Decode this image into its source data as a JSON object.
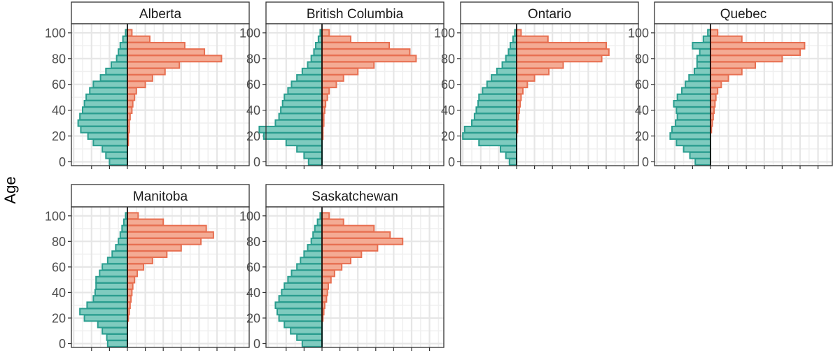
{
  "chart_data": {
    "type": "bar",
    "orientation": "horizontal",
    "facet_layout": "4 columns x 2 rows",
    "ylabel": "Age",
    "xlabel": "",
    "ylim": [
      -3,
      107
    ],
    "y_ticks": [
      0,
      20,
      40,
      60,
      80,
      100
    ],
    "x_ticks_shown": false,
    "grid": true,
    "legend": "none",
    "colors": {
      "left_series": "#2a9d8f",
      "right_series": "#e76f51",
      "left_fill": "#7fcbbf",
      "right_fill": "#f4ab94"
    },
    "age_bins": [
      0,
      5,
      10,
      15,
      20,
      25,
      30,
      35,
      40,
      45,
      50,
      55,
      60,
      65,
      70,
      75,
      80,
      85,
      90,
      95,
      100
    ],
    "panels": [
      {
        "title": "Alberta",
        "left": [
          20,
          24,
          28,
          38,
          44,
          52,
          55,
          53,
          50,
          48,
          46,
          42,
          38,
          30,
          24,
          18,
          12,
          10,
          8,
          5,
          2
        ],
        "right": [
          0,
          0,
          0,
          1,
          1,
          2,
          2,
          3,
          5,
          6,
          8,
          10,
          20,
          28,
          42,
          58,
          105,
          86,
          64,
          25,
          5
        ]
      },
      {
        "title": "British Columbia",
        "left": [
          15,
          20,
          28,
          40,
          65,
          70,
          52,
          48,
          46,
          44,
          42,
          38,
          34,
          28,
          22,
          16,
          12,
          9,
          7,
          4,
          2
        ],
        "right": [
          0,
          0,
          0,
          0,
          1,
          1,
          2,
          2,
          3,
          4,
          6,
          8,
          16,
          24,
          40,
          58,
          105,
          98,
          75,
          32,
          8
        ]
      },
      {
        "title": "Ontario",
        "left": [
          8,
          12,
          18,
          42,
          60,
          58,
          50,
          47,
          45,
          43,
          42,
          38,
          33,
          28,
          22,
          16,
          12,
          9,
          7,
          4,
          2
        ],
        "right": [
          0,
          0,
          0,
          0,
          0,
          1,
          1,
          2,
          3,
          4,
          5,
          7,
          12,
          20,
          36,
          52,
          95,
          103,
          100,
          35,
          5
        ]
      },
      {
        "title": "Quebec",
        "left": [
          17,
          23,
          30,
          38,
          45,
          43,
          39,
          37,
          38,
          41,
          37,
          32,
          28,
          24,
          18,
          15,
          15,
          12,
          20,
          8,
          3
        ],
        "right": [
          0,
          0,
          0,
          0,
          0,
          1,
          2,
          3,
          4,
          5,
          6,
          8,
          12,
          20,
          35,
          50,
          80,
          100,
          105,
          35,
          8
        ]
      },
      {
        "title": "Manitoba",
        "left": [
          22,
          23,
          28,
          33,
          48,
          53,
          45,
          38,
          36,
          35,
          35,
          31,
          28,
          22,
          17,
          13,
          10,
          8,
          6,
          4,
          2
        ],
        "right": [
          0,
          0,
          0,
          0,
          1,
          2,
          3,
          4,
          5,
          6,
          8,
          11,
          18,
          28,
          44,
          60,
          82,
          96,
          88,
          40,
          12
        ]
      },
      {
        "title": "Saskatchewan",
        "left": [
          22,
          28,
          35,
          42,
          48,
          50,
          52,
          48,
          45,
          42,
          38,
          34,
          28,
          24,
          20,
          16,
          12,
          10,
          8,
          5,
          2
        ],
        "right": [
          0,
          0,
          0,
          0,
          1,
          2,
          3,
          5,
          6,
          7,
          10,
          14,
          22,
          32,
          44,
          62,
          90,
          76,
          58,
          24,
          8
        ]
      }
    ]
  }
}
